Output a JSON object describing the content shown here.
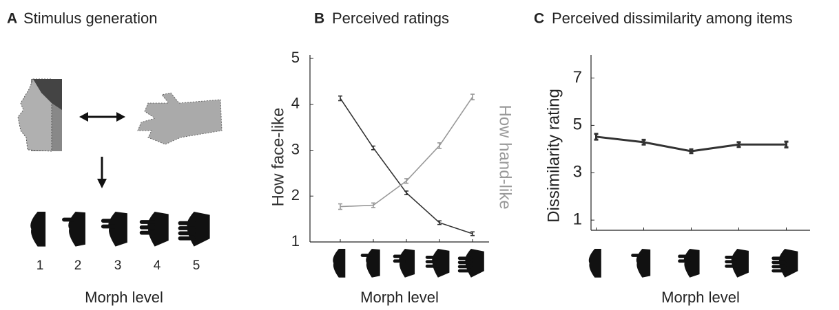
{
  "panel_a": {
    "letter": "A",
    "title": "Stimulus generation",
    "levels": [
      "1",
      "2",
      "3",
      "4",
      "5"
    ],
    "xlabel": "Morph level"
  },
  "chart_data": [
    {
      "type": "line",
      "letter": "B",
      "title": "Perceived ratings",
      "xlabel": "Morph level",
      "categories": [
        null,
        null,
        null,
        null,
        null
      ],
      "ylim": [
        1,
        5
      ],
      "yticks": [
        1,
        2,
        3,
        4,
        5
      ],
      "series": [
        {
          "name": "How face-like",
          "color": "#333333",
          "values": [
            4.13,
            3.05,
            2.07,
            1.42,
            1.18
          ],
          "errors": [
            0.05,
            0.04,
            0.04,
            0.04,
            0.04
          ]
        },
        {
          "name": "How hand-like",
          "color": "#999999",
          "values": [
            1.77,
            1.8,
            2.33,
            3.1,
            4.16
          ],
          "errors": [
            0.06,
            0.05,
            0.05,
            0.06,
            0.06
          ]
        }
      ]
    },
    {
      "type": "line",
      "letter": "C",
      "title": "Perceived dissimilarity among items",
      "xlabel": "Morph level",
      "ylabel": "Dissimilarity rating",
      "categories": [
        null,
        null,
        null,
        null,
        null
      ],
      "ylim": [
        0.57,
        7.45
      ],
      "yticks": [
        1,
        3,
        5,
        7
      ],
      "series": [
        {
          "color": "#333333",
          "values": [
            4.52,
            4.29,
            3.91,
            4.19,
            4.19
          ],
          "errors": [
            0.12,
            0.1,
            0.08,
            0.1,
            0.12
          ]
        }
      ]
    }
  ]
}
